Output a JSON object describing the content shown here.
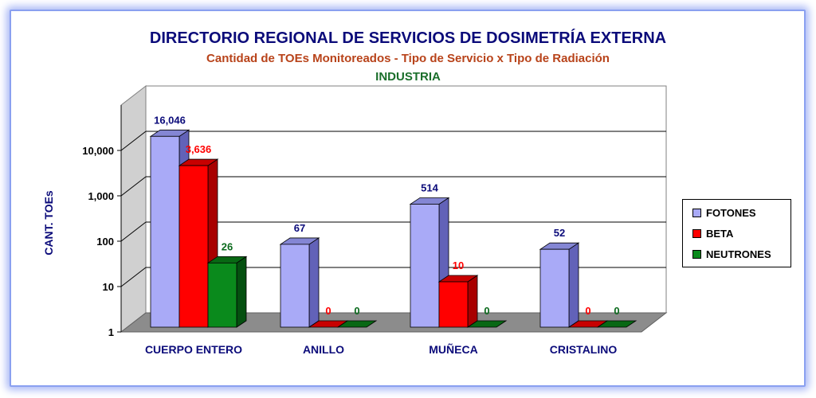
{
  "chart_data": {
    "type": "bar",
    "title": "DIRECTORIO REGIONAL DE SERVICIOS DE DOSIMETRÍA EXTERNA",
    "subtitle": "Cantidad de TOEs Monitoreados - Tipo de Servicio x Tipo de Radiación",
    "subtitle2": "INDUSTRIA",
    "ylabel": "CANT. TOEs",
    "y_scale": "log",
    "ylim": [
      1,
      100000
    ],
    "y_ticks": [
      "1",
      "10",
      "100",
      "1,000",
      "10,000"
    ],
    "categories": [
      "CUERPO ENTERO",
      "ANILLO",
      "MUÑECA",
      "CRISTALINO"
    ],
    "series": [
      {
        "name": "FOTONES",
        "values": [
          16046,
          67,
          514,
          52
        ],
        "labels": [
          "16,046",
          "67",
          "514",
          "52"
        ],
        "color": "#a9aaf7",
        "side_color": "#6262b8",
        "top_color": "#8486d4",
        "label_color": "#0b0b7a"
      },
      {
        "name": "BETA",
        "values": [
          3636,
          0,
          10,
          0
        ],
        "labels": [
          "3,636",
          "0",
          "10",
          "0"
        ],
        "color": "#ff0000",
        "side_color": "#a80000",
        "top_color": "#c80000",
        "label_color": "#ff0000"
      },
      {
        "name": "NEUTRONES",
        "values": [
          26,
          0,
          0,
          0
        ],
        "labels": [
          "26",
          "0",
          "0",
          "0"
        ],
        "color": "#0a8a1c",
        "side_color": "#055010",
        "top_color": "#086814",
        "label_color": "#0a6a1c"
      }
    ],
    "grid": true,
    "legend": "right"
  }
}
